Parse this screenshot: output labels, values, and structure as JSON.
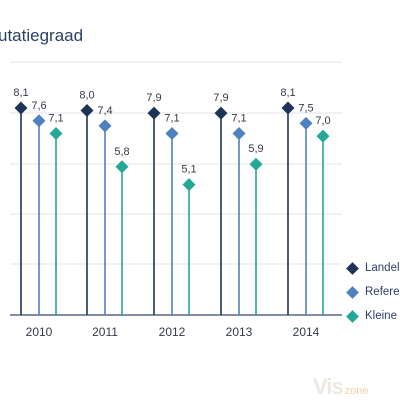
{
  "chart_data": {
    "type": "scatter",
    "title": "utatiegraad",
    "categories": [
      "2010",
      "2011",
      "2012",
      "2013",
      "2014"
    ],
    "ylim": [
      0,
      9.9
    ],
    "series": [
      {
        "name": "Landelij",
        "color": "#1d3458",
        "values": [
          8.1,
          8.0,
          7.9,
          7.9,
          8.1
        ],
        "labels": [
          "8,1",
          "8,0",
          "7,9",
          "7,9",
          "8,1"
        ]
      },
      {
        "name": "Referen",
        "color": "#4f80c0",
        "values": [
          7.6,
          7.4,
          7.1,
          7.1,
          7.5
        ],
        "labels": [
          "7,6",
          "7,4",
          "7,1",
          "7,1",
          "7,5"
        ]
      },
      {
        "name": "Kleine N",
        "color": "#23a898",
        "values": [
          7.1,
          5.8,
          5.1,
          5.9,
          7.0
        ],
        "labels": [
          "7,1",
          "5,8",
          "5,1",
          "5,9",
          "7,0"
        ]
      }
    ],
    "grid": true,
    "legend": "right"
  },
  "watermark": {
    "brand": "Vis",
    "suffix": "zone"
  }
}
